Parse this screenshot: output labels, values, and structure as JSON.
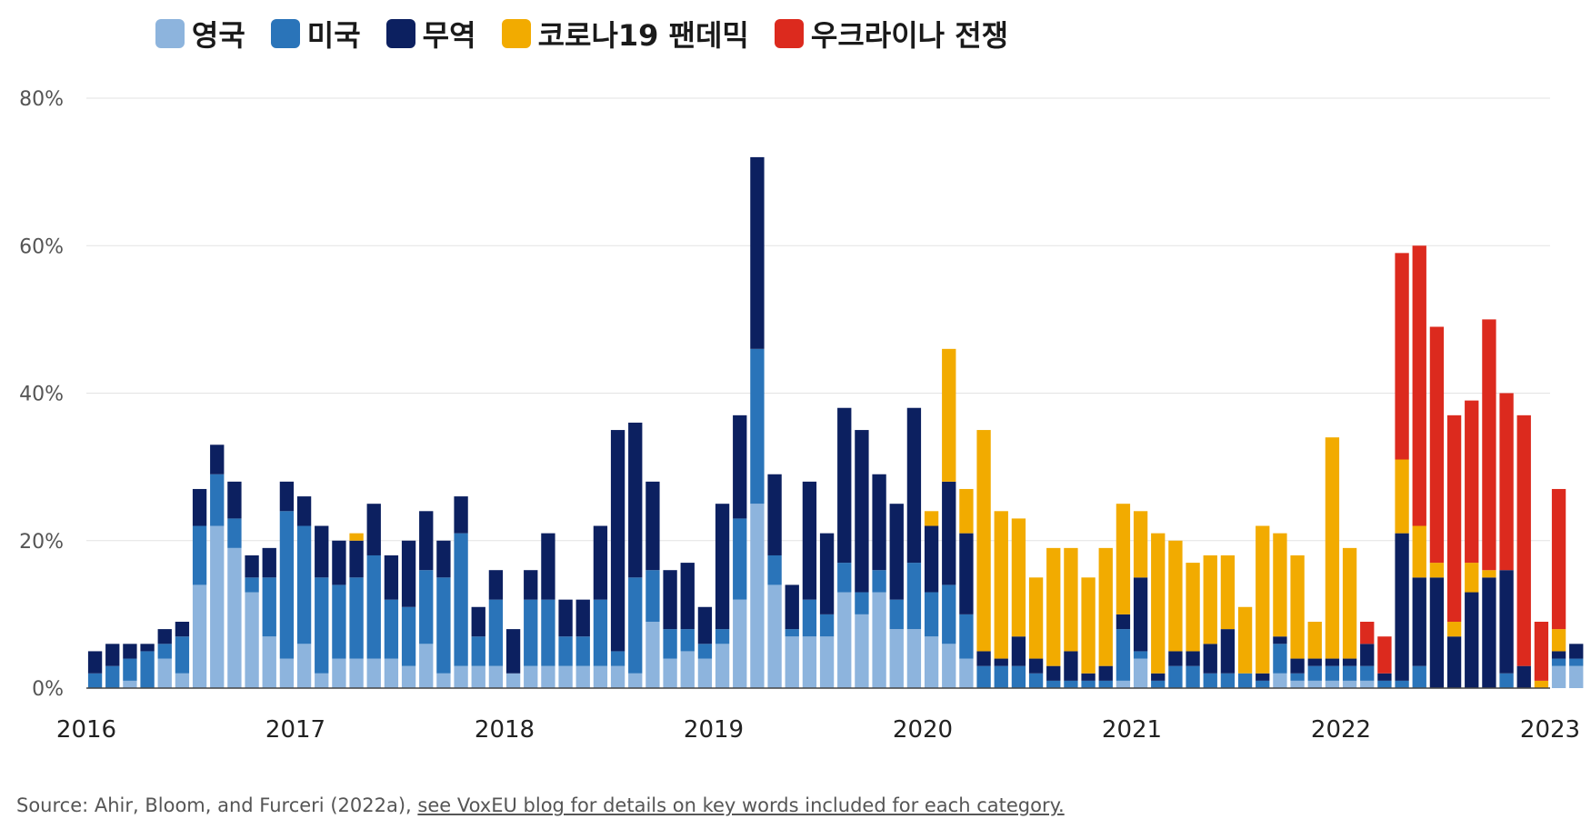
{
  "legend": [
    {
      "label": "영국",
      "color": "#8db4dd"
    },
    {
      "label": "미국",
      "color": "#2a74b9"
    },
    {
      "label": "무역",
      "color": "#0c2060"
    },
    {
      "label": "코로나19 팬데믹",
      "color": "#f2ab00"
    },
    {
      "label": "우크라이나 전쟁",
      "color": "#dc2a1e"
    }
  ],
  "source": {
    "text": "Source: Ahir, Bloom, and Furceri (2022a),",
    "link": "see VoxEU blog for details on key words included for each category."
  },
  "chart_data": {
    "type": "bar",
    "stacked": true,
    "title": "",
    "xlabel": "",
    "ylabel": "",
    "ylim": [
      0,
      80
    ],
    "yticks": [
      0,
      20,
      40,
      60,
      80
    ],
    "ytick_labels": [
      "0%",
      "20%",
      "40%",
      "60%",
      "80%"
    ],
    "xlim": [
      2016,
      2023
    ],
    "xticks": [
      2016,
      2017,
      2018,
      2019,
      2020,
      2021,
      2022,
      2023
    ],
    "xtick_labels": [
      "2016",
      "2017",
      "2018",
      "2019",
      "2020",
      "2021",
      "2022",
      "2023"
    ],
    "grid": true,
    "legend_position": "top",
    "x_start": "2016-01",
    "x_step": "1 month",
    "series": [
      {
        "name": "영국",
        "color": "#8db4dd",
        "values": [
          0,
          0,
          1,
          0,
          4,
          2,
          14,
          22,
          19,
          13,
          7,
          4,
          6,
          2,
          4,
          4,
          4,
          4,
          3,
          6,
          2,
          3,
          3,
          3,
          2,
          3,
          3,
          3,
          3,
          3,
          3,
          2,
          9,
          4,
          5,
          4,
          6,
          12,
          25,
          14,
          7,
          7,
          7,
          13,
          10,
          13,
          8,
          8,
          7,
          6,
          4,
          0,
          0,
          0,
          0,
          0,
          0,
          0,
          0,
          1,
          4,
          0,
          0,
          0,
          0,
          0,
          0,
          0,
          2,
          1,
          1,
          1,
          1,
          1,
          0,
          0,
          0,
          0,
          0,
          0,
          0,
          0,
          0,
          0,
          3,
          3
        ]
      },
      {
        "name": "미국",
        "color": "#2a74b9",
        "values": [
          2,
          3,
          3,
          5,
          2,
          5,
          8,
          7,
          4,
          2,
          8,
          20,
          16,
          13,
          10,
          11,
          14,
          8,
          8,
          10,
          13,
          18,
          4,
          9,
          0,
          9,
          9,
          4,
          4,
          9,
          2,
          13,
          7,
          4,
          3,
          2,
          2,
          11,
          21,
          4,
          1,
          5,
          3,
          4,
          3,
          3,
          4,
          9,
          6,
          8,
          6,
          3,
          3,
          3,
          2,
          1,
          1,
          1,
          1,
          7,
          1,
          1,
          3,
          3,
          2,
          2,
          2,
          1,
          4,
          1,
          2,
          2,
          2,
          2,
          1,
          1,
          3,
          0,
          0,
          0,
          0,
          2,
          0,
          0,
          1,
          1
        ]
      },
      {
        "name": "무역",
        "color": "#0c2060",
        "values": [
          3,
          3,
          2,
          1,
          2,
          2,
          5,
          4,
          5,
          3,
          4,
          4,
          4,
          7,
          6,
          5,
          7,
          6,
          9,
          8,
          5,
          5,
          4,
          4,
          6,
          4,
          9,
          5,
          5,
          10,
          30,
          21,
          12,
          8,
          9,
          5,
          17,
          14,
          26,
          11,
          6,
          16,
          11,
          21,
          22,
          13,
          13,
          21,
          9,
          14,
          11,
          2,
          1,
          4,
          2,
          2,
          4,
          1,
          2,
          2,
          10,
          1,
          2,
          2,
          4,
          6,
          0,
          1,
          1,
          2,
          1,
          1,
          1,
          3,
          1,
          20,
          12,
          15,
          7,
          13,
          15,
          14,
          3,
          0,
          1,
          2
        ]
      },
      {
        "name": "코로나19 팬데믹",
        "color": "#f2ab00",
        "values": [
          0,
          0,
          0,
          0,
          0,
          0,
          0,
          0,
          0,
          0,
          0,
          0,
          0,
          0,
          0,
          1,
          0,
          0,
          0,
          0,
          0,
          0,
          0,
          0,
          0,
          0,
          0,
          0,
          0,
          0,
          0,
          0,
          0,
          0,
          0,
          0,
          0,
          0,
          0,
          0,
          0,
          0,
          0,
          0,
          0,
          0,
          0,
          0,
          2,
          18,
          6,
          30,
          20,
          16,
          11,
          16,
          14,
          13,
          16,
          15,
          9,
          19,
          15,
          12,
          12,
          10,
          9,
          20,
          14,
          14,
          5,
          30,
          15,
          0,
          0,
          10,
          7,
          2,
          2,
          4,
          1,
          0,
          0,
          1,
          3,
          0
        ]
      },
      {
        "name": "우크라이나 전쟁",
        "color": "#dc2a1e",
        "values": [
          0,
          0,
          0,
          0,
          0,
          0,
          0,
          0,
          0,
          0,
          0,
          0,
          0,
          0,
          0,
          0,
          0,
          0,
          0,
          0,
          0,
          0,
          0,
          0,
          0,
          0,
          0,
          0,
          0,
          0,
          0,
          0,
          0,
          0,
          0,
          0,
          0,
          0,
          0,
          0,
          0,
          0,
          0,
          0,
          0,
          0,
          0,
          0,
          0,
          0,
          0,
          0,
          0,
          0,
          0,
          0,
          0,
          0,
          0,
          0,
          0,
          0,
          0,
          0,
          0,
          0,
          0,
          0,
          0,
          0,
          0,
          0,
          0,
          3,
          5,
          28,
          38,
          32,
          28,
          22,
          34,
          24,
          34,
          8,
          19
        ]
      }
    ]
  }
}
